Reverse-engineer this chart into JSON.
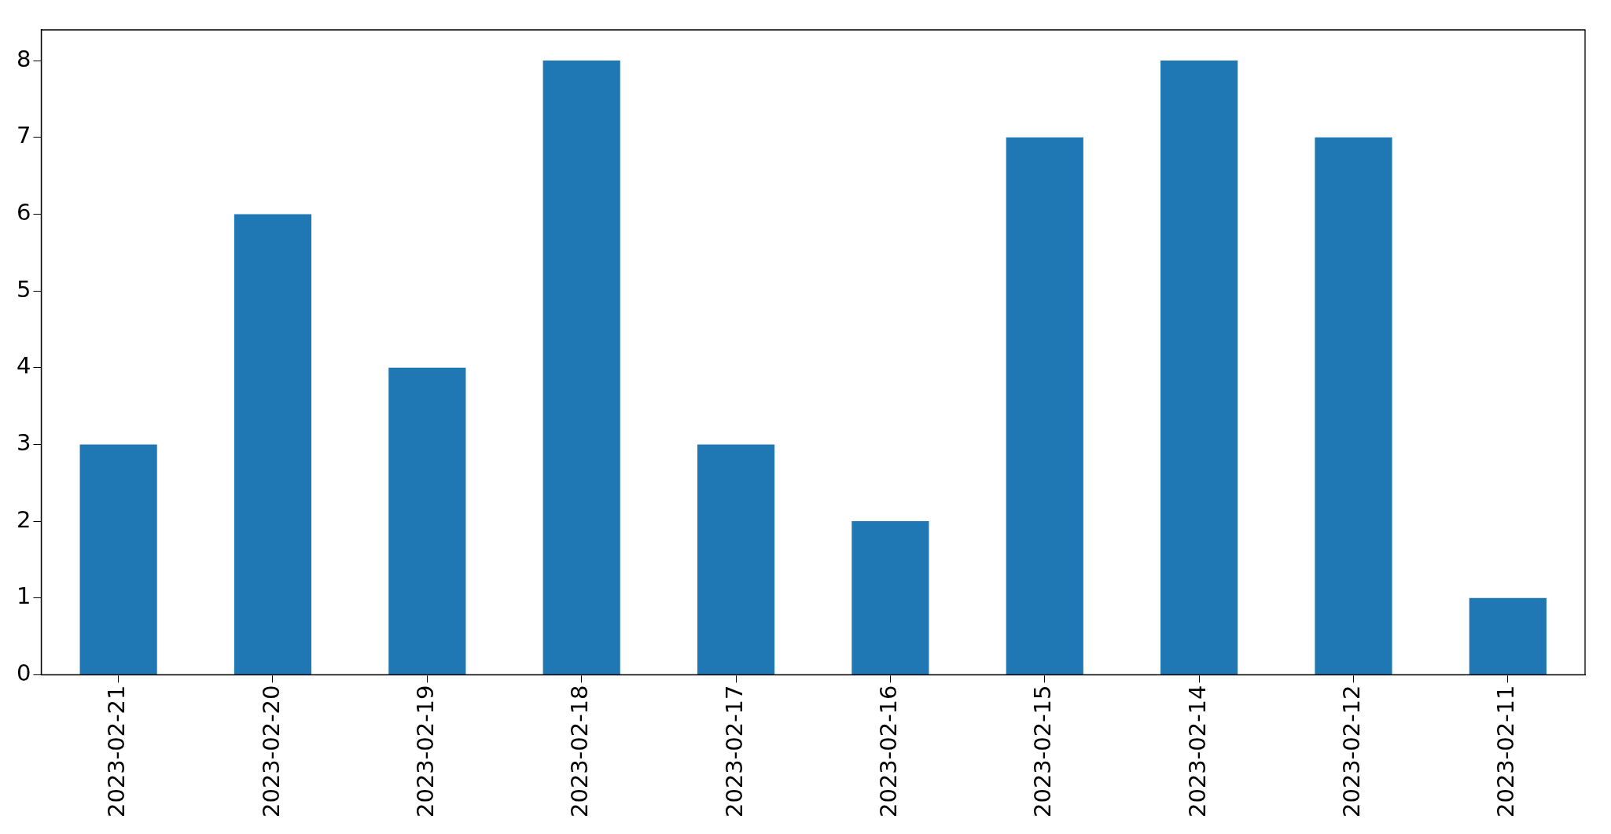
{
  "chart_data": {
    "type": "bar",
    "categories": [
      "2023-02-21",
      "2023-02-20",
      "2023-02-19",
      "2023-02-18",
      "2023-02-17",
      "2023-02-16",
      "2023-02-15",
      "2023-02-14",
      "2023-02-12",
      "2023-02-11"
    ],
    "values": [
      3,
      6,
      4,
      8,
      3,
      2,
      7,
      8,
      7,
      1
    ],
    "color": "#1f77b4",
    "ylim": [
      0,
      8.4
    ],
    "yticks": [
      0,
      1,
      2,
      3,
      4,
      5,
      6,
      7,
      8
    ],
    "grid": false,
    "legend": false
  }
}
